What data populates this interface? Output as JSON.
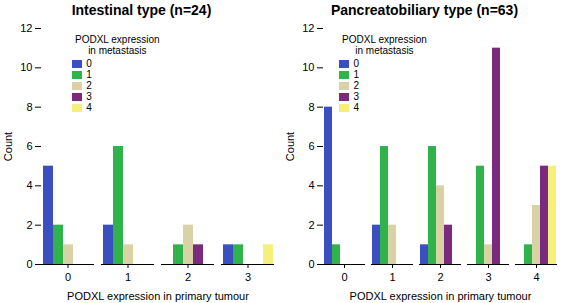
{
  "chart_data": [
    {
      "type": "bar",
      "title": "Intestinal type (n=24)",
      "x_label": "PODXL expression in primary tumour",
      "y_label": "Count",
      "legend": "upper left",
      "legend_title": "PODXL expression in metastasis",
      "categories": [
        "0",
        "1",
        "2",
        "3"
      ],
      "series": [
        {
          "name": "0",
          "color": "#3b4fc0",
          "values": [
            5,
            2,
            0,
            1
          ]
        },
        {
          "name": "1",
          "color": "#2fb34a",
          "values": [
            2,
            6,
            1,
            1
          ]
        },
        {
          "name": "2",
          "color": "#d8d2a4",
          "values": [
            1,
            1,
            2,
            0
          ]
        },
        {
          "name": "3",
          "color": "#7b2a7f",
          "values": [
            0,
            0,
            1,
            0
          ]
        },
        {
          "name": "4",
          "color": "#f5f07a",
          "values": [
            0,
            0,
            0,
            1
          ]
        }
      ],
      "ylim": [
        0,
        12
      ],
      "yticks": [
        0,
        2,
        4,
        6,
        8,
        10,
        12
      ]
    },
    {
      "type": "bar",
      "title": "Pancreatobiliary type (n=63)",
      "x_label": "PODXL expression in primary tumour",
      "y_label": "Count",
      "legend": "upper left",
      "legend_title": "PODXL expression in metastasis",
      "categories": [
        "0",
        "1",
        "2",
        "3",
        "4"
      ],
      "series": [
        {
          "name": "0",
          "color": "#3b4fc0",
          "values": [
            8,
            2,
            1,
            0,
            0
          ]
        },
        {
          "name": "1",
          "color": "#2fb34a",
          "values": [
            1,
            6,
            6,
            5,
            1
          ]
        },
        {
          "name": "2",
          "color": "#d8d2a4",
          "values": [
            0,
            2,
            4,
            1,
            3
          ]
        },
        {
          "name": "3",
          "color": "#7b2a7f",
          "values": [
            0,
            0,
            2,
            11,
            5
          ]
        },
        {
          "name": "4",
          "color": "#f5f07a",
          "values": [
            0,
            0,
            0,
            0,
            5
          ]
        }
      ],
      "ylim": [
        0,
        12
      ],
      "yticks": [
        0,
        2,
        4,
        6,
        8,
        10,
        12
      ]
    }
  ]
}
